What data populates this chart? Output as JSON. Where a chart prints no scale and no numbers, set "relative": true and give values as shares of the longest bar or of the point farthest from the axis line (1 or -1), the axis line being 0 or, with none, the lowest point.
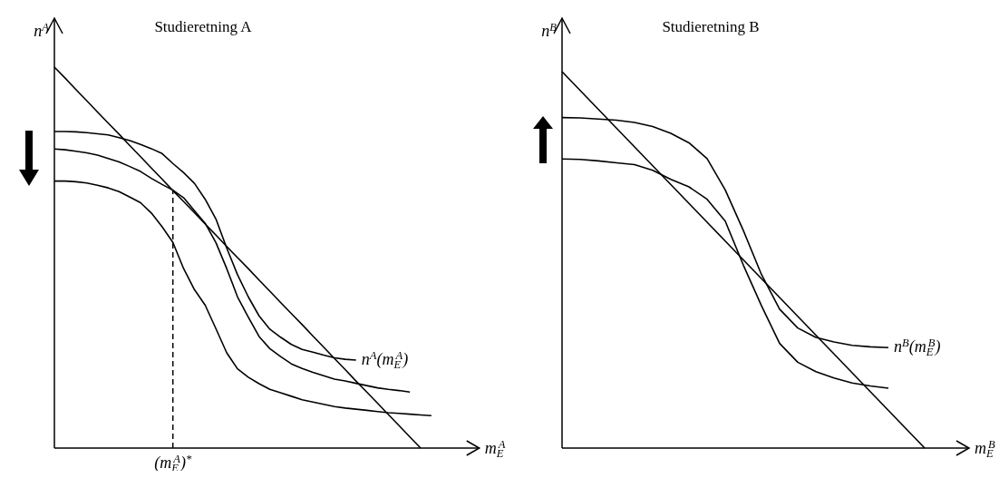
{
  "chart_data": [
    {
      "type": "line",
      "title": "Studieretning A",
      "xlabel": "m$_{E}$$^{A}$",
      "ylabel": "n$^{A}$",
      "relative": true,
      "categories": [
        null,
        null,
        null,
        null,
        null,
        null,
        null,
        null,
        null,
        null,
        null,
        null,
        null,
        null,
        null,
        null,
        null,
        null,
        null,
        null,
        null,
        null,
        null,
        null,
        null,
        null,
        null,
        null,
        null,
        null,
        null,
        null,
        null,
        null,
        null,
        null,
        null,
        null,
        null,
        null
      ],
      "annotations": [
        "(m$_{E}$$^{A}$)$^{*}$"
      ],
      "series": [
        {
          "color": "#000000",
          "values": [
            1,
            0.971,
            0.941,
            0.912,
            0.882,
            0.853,
            0.824,
            0.794,
            0.765,
            0.735,
            0.706,
            0.676,
            0.647,
            0.618,
            0.588,
            0.559,
            0.529,
            0.5,
            0.471,
            0.441,
            0.412,
            0.382,
            0.353,
            0.324,
            0.294,
            0.265,
            0.235,
            0.206,
            0.176,
            0.147,
            0.118,
            0.088,
            0.059,
            0.029,
            0,
            null,
            null,
            null,
            null,
            null
          ]
        },
        {
          "name": "n$^{A}$(m$_{E}$$^{A}$)",
          "color": "#000000",
          "values": [
            0.831,
            0.831,
            0.83,
            0.828,
            0.825,
            0.822,
            0.815,
            0.807,
            0.797,
            0.786,
            0.773,
            0.747,
            0.723,
            0.695,
            0.653,
            0.601,
            0.525,
            0.455,
            0.397,
            0.347,
            0.312,
            0.291,
            0.272,
            0.259,
            0.252,
            0.244,
            0.237,
            0.233,
            0.231,
            null,
            null,
            null,
            null,
            null,
            null,
            null,
            null,
            null,
            null,
            null
          ]
        },
        {
          "color": "#000000",
          "values": [
            0.785,
            0.783,
            0.779,
            0.775,
            0.769,
            0.76,
            0.751,
            0.739,
            0.726,
            0.708,
            0.692,
            0.677,
            0.657,
            0.623,
            0.59,
            0.539,
            0.471,
            0.397,
            0.344,
            0.293,
            0.261,
            0.24,
            0.221,
            0.209,
            0.199,
            0.19,
            0.181,
            0.176,
            0.17,
            0.164,
            0.158,
            0.154,
            0.151,
            0.147,
            null,
            null,
            null,
            null,
            null,
            null
          ]
        },
        {
          "color": "#000000",
          "values": [
            0.701,
            0.701,
            0.699,
            0.696,
            0.69,
            0.683,
            0.673,
            0.659,
            0.644,
            0.617,
            0.581,
            0.54,
            0.471,
            0.416,
            0.375,
            0.313,
            0.25,
            0.208,
            0.186,
            0.169,
            0.154,
            0.145,
            0.136,
            0.127,
            0.121,
            0.115,
            0.109,
            0.105,
            0.102,
            0.099,
            0.096,
            0.093,
            0.091,
            0.089,
            0.087,
            0.085,
            null,
            null,
            null,
            null
          ]
        }
      ]
    },
    {
      "type": "line",
      "title": "Studieretning B",
      "xlabel": "m$_{E}$$^{B}$",
      "ylabel": "n$^{B}$",
      "relative": true,
      "categories": [
        null,
        null,
        null,
        null,
        null,
        null,
        null,
        null,
        null,
        null,
        null,
        null,
        null,
        null,
        null,
        null,
        null,
        null,
        null,
        null,
        null,
        null,
        null
      ],
      "series": [
        {
          "color": "#000000",
          "values": [
            1,
            0.95,
            0.9,
            0.85,
            0.8,
            0.75,
            0.7,
            0.65,
            0.6,
            0.55,
            0.5,
            0.45,
            0.4,
            0.35,
            0.3,
            0.25,
            0.2,
            0.15,
            0.1,
            0.05,
            0,
            null,
            null
          ]
        },
        {
          "name": "n$^{B}$(m$_{E}$$^{B}$)",
          "color": "#000000",
          "values": [
            0.878,
            0.877,
            0.874,
            0.871,
            0.865,
            0.854,
            0.836,
            0.811,
            0.769,
            0.686,
            0.578,
            0.461,
            0.369,
            0.319,
            0.294,
            0.282,
            0.273,
            0.269,
            0.267,
            null,
            null,
            null,
            null
          ]
        },
        {
          "color": "#000000",
          "values": [
            0.768,
            0.767,
            0.763,
            0.758,
            0.753,
            0.738,
            0.714,
            0.694,
            0.661,
            0.603,
            0.486,
            0.378,
            0.278,
            0.228,
            0.203,
            0.186,
            0.173,
            0.165,
            0.159,
            null,
            null,
            null,
            null
          ]
        }
      ]
    }
  ]
}
